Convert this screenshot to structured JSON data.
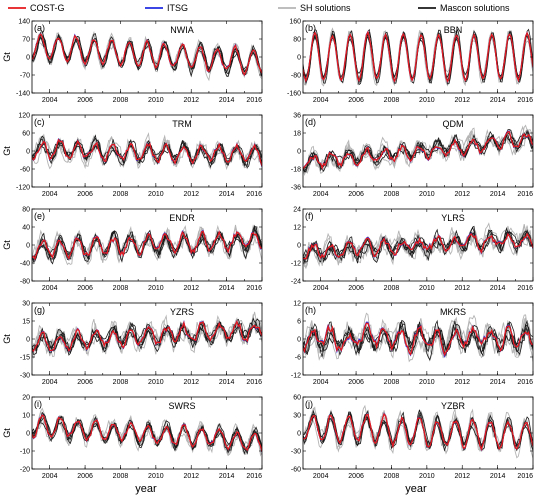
{
  "legend": [
    {
      "name": "COST-G",
      "color": "#e41a1c"
    },
    {
      "name": "ITSG",
      "color": "#1f2be0"
    },
    {
      "name": "SH solutions",
      "color": "#b4b4b4"
    },
    {
      "name": "Mascon solutions",
      "color": "#1a1a1a"
    }
  ],
  "chart_data": [
    {
      "type": "line",
      "panel": "(a)",
      "title": "NWIA",
      "ylabel": "Gt",
      "ylim": [
        -140,
        140
      ],
      "yticks": [
        -140,
        -70,
        0,
        70,
        140
      ],
      "ytick_labels": [
        "-140",
        "-70",
        "0",
        "70",
        "140"
      ],
      "xlim": [
        2003,
        2016
      ],
      "xticks": [
        2004,
        2006,
        2008,
        2010,
        2012,
        2014,
        2016
      ],
      "xtick_labels": [
        "2004",
        "2006",
        "2008",
        "2010",
        "2012",
        "2014",
        "2016"
      ],
      "trend": [
        40,
        -20
      ],
      "amplitude": 45,
      "peak_month": 7,
      "noise": 14
    },
    {
      "type": "line",
      "panel": "(b)",
      "title": "BBN",
      "ylabel": "",
      "ylim": [
        -160,
        160
      ],
      "yticks": [
        -160,
        -80,
        0,
        80,
        160
      ],
      "ytick_labels": [
        "-160",
        "-80",
        "0",
        "80",
        "160"
      ],
      "xlim": [
        2003,
        2016
      ],
      "xticks": [
        2004,
        2006,
        2008,
        2010,
        2012,
        2014,
        2016
      ],
      "xtick_labels": [
        "2004",
        "2006",
        "2008",
        "2010",
        "2012",
        "2014",
        "2016"
      ],
      "trend": [
        0,
        0
      ],
      "amplitude": 100,
      "peak_month": 9,
      "noise": 10
    },
    {
      "type": "line",
      "panel": "(c)",
      "title": "TRM",
      "ylabel": "Gt",
      "ylim": [
        -120,
        120
      ],
      "yticks": [
        -120,
        -60,
        0,
        60,
        120
      ],
      "ytick_labels": [
        "-120",
        "-60",
        "0",
        "60",
        "120"
      ],
      "xlim": [
        2003,
        2016
      ],
      "xticks": [
        2004,
        2006,
        2008,
        2010,
        2012,
        2014,
        2016
      ],
      "xtick_labels": [
        "2004",
        "2006",
        "2008",
        "2010",
        "2012",
        "2014",
        "2016"
      ],
      "trend": [
        5,
        -15
      ],
      "amplitude": 25,
      "peak_month": 8,
      "noise": 16
    },
    {
      "type": "line",
      "panel": "(d)",
      "title": "QDM",
      "ylabel": "",
      "ylim": [
        -36,
        36
      ],
      "yticks": [
        -36,
        -18,
        0,
        18,
        36
      ],
      "ytick_labels": [
        "-36",
        "-18",
        "0",
        "18",
        "36"
      ],
      "xlim": [
        2003,
        2016
      ],
      "xticks": [
        2004,
        2006,
        2008,
        2010,
        2012,
        2014,
        2016
      ],
      "xtick_labels": [
        "2004",
        "2006",
        "2008",
        "2010",
        "2012",
        "2014",
        "2016"
      ],
      "trend": [
        -12,
        12
      ],
      "amplitude": 6,
      "peak_month": 8,
      "noise": 5
    },
    {
      "type": "line",
      "panel": "(e)",
      "title": "ENDR",
      "ylabel": "Gt",
      "ylim": [
        -80,
        80
      ],
      "yticks": [
        -80,
        -40,
        0,
        40,
        80
      ],
      "ytick_labels": [
        "-80",
        "-40",
        "0",
        "40",
        "80"
      ],
      "xlim": [
        2003,
        2016
      ],
      "xticks": [
        2004,
        2006,
        2008,
        2010,
        2012,
        2014,
        2016
      ],
      "xtick_labels": [
        "2004",
        "2006",
        "2008",
        "2010",
        "2012",
        "2014",
        "2016"
      ],
      "trend": [
        -10,
        10
      ],
      "amplitude": 18,
      "peak_month": 8,
      "noise": 12
    },
    {
      "type": "line",
      "panel": "(f)",
      "title": "YLRS",
      "ylabel": "",
      "ylim": [
        -24,
        24
      ],
      "yticks": [
        -24,
        -12,
        0,
        12,
        24
      ],
      "ytick_labels": [
        "-24",
        "-12",
        "0",
        "12",
        "24"
      ],
      "xlim": [
        2003,
        2016
      ],
      "xticks": [
        2004,
        2006,
        2008,
        2010,
        2012,
        2014,
        2016
      ],
      "xtick_labels": [
        "2004",
        "2006",
        "2008",
        "2010",
        "2012",
        "2014",
        "2016"
      ],
      "trend": [
        -5,
        4
      ],
      "amplitude": 4,
      "peak_month": 8,
      "noise": 4
    },
    {
      "type": "line",
      "panel": "(g)",
      "title": "YZRS",
      "ylabel": "Gt",
      "ylim": [
        -30,
        30
      ],
      "yticks": [
        -30,
        -15,
        0,
        15,
        30
      ],
      "ytick_labels": [
        "-30",
        "-15",
        "0",
        "15",
        "30"
      ],
      "xlim": [
        2003,
        2016
      ],
      "xticks": [
        2004,
        2006,
        2008,
        2010,
        2012,
        2014,
        2016
      ],
      "xtick_labels": [
        "2004",
        "2006",
        "2008",
        "2010",
        "2012",
        "2014",
        "2016"
      ],
      "trend": [
        -3,
        8
      ],
      "amplitude": 6,
      "peak_month": 8,
      "noise": 5
    },
    {
      "type": "line",
      "panel": "(h)",
      "title": "MKRS",
      "ylabel": "",
      "ylim": [
        -12,
        12
      ],
      "yticks": [
        -12,
        -6,
        0,
        6,
        12
      ],
      "ytick_labels": [
        "-12",
        "-6",
        "0",
        "6",
        "12"
      ],
      "xlim": [
        2003,
        2016
      ],
      "xticks": [
        2004,
        2006,
        2008,
        2010,
        2012,
        2014,
        2016
      ],
      "xtick_labels": [
        "2004",
        "2006",
        "2008",
        "2010",
        "2012",
        "2014",
        "2016"
      ],
      "trend": [
        0,
        0
      ],
      "amplitude": 3,
      "peak_month": 8,
      "noise": 2.5
    },
    {
      "type": "line",
      "panel": "(i)",
      "title": "SWRS",
      "ylabel": "Gt",
      "ylim": [
        -20,
        20
      ],
      "yticks": [
        -20,
        -10,
        0,
        10,
        20
      ],
      "ytick_labels": [
        "-20",
        "-10",
        "0",
        "10",
        "20"
      ],
      "xlim": [
        2003,
        2016
      ],
      "xticks": [
        2004,
        2006,
        2008,
        2010,
        2012,
        2014,
        2016
      ],
      "xtick_labels": [
        "2004",
        "2006",
        "2008",
        "2010",
        "2012",
        "2014",
        "2016"
      ],
      "trend": [
        4,
        -5
      ],
      "amplitude": 5,
      "peak_month": 8,
      "noise": 2.5
    },
    {
      "type": "line",
      "panel": "(j)",
      "title": "YZBR",
      "ylabel": "",
      "ylim": [
        -60,
        60
      ],
      "yticks": [
        -60,
        -30,
        0,
        30,
        60
      ],
      "ytick_labels": [
        "-60",
        "-30",
        "0",
        "30",
        "60"
      ],
      "xlim": [
        2003,
        2016
      ],
      "xticks": [
        2004,
        2006,
        2008,
        2010,
        2012,
        2014,
        2016
      ],
      "xtick_labels": [
        "2004",
        "2006",
        "2008",
        "2010",
        "2012",
        "2014",
        "2016"
      ],
      "trend": [
        10,
        -5
      ],
      "amplitude": 22,
      "peak_month": 8,
      "noise": 8
    }
  ],
  "xlabel": "year"
}
